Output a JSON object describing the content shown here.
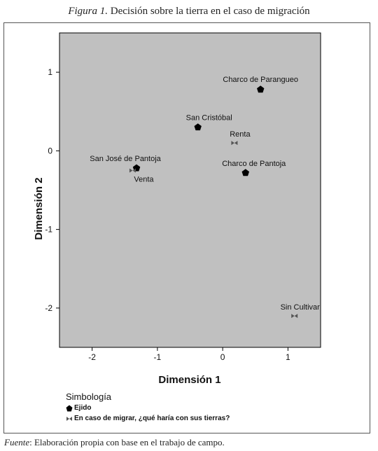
{
  "caption": {
    "figure_label": "Figura 1.",
    "title": "Decisión sobre la tierra en el caso de migración"
  },
  "source": {
    "label": "Fuente",
    "text": ": Elaboración propia con base en el trabajo de campo."
  },
  "legend": {
    "title": "Simbología",
    "items": [
      {
        "label": "Ejido",
        "icon": "pentagon-marker-icon"
      },
      {
        "label": "En caso de migrar, ¿qué haría con sus tierras?",
        "icon": "bowtie-marker-icon"
      }
    ]
  },
  "chart_data": {
    "type": "scatter",
    "title": "",
    "xlabel": "Dimensión 1",
    "ylabel": "Dimensión 2",
    "xlim": [
      -2.5,
      1.5
    ],
    "ylim": [
      -2.5,
      1.5
    ],
    "xticks": [
      "-2",
      "-1",
      "0",
      "1"
    ],
    "yticks": [
      "-2",
      "-1",
      "0",
      "1"
    ],
    "grid": false,
    "background_color": "#c0c0c0",
    "series": [
      {
        "name": "Ejido",
        "marker": "pentagon",
        "color": "#000000",
        "points": [
          {
            "label": "Charco de Parangueo",
            "x": 0.58,
            "y": 0.78
          },
          {
            "label": "San Cristóbal",
            "x": -0.38,
            "y": 0.3
          },
          {
            "label": "San José de Pantoja",
            "x": -1.32,
            "y": -0.22
          },
          {
            "label": "Charco de Pantoja",
            "x": 0.35,
            "y": -0.28
          }
        ]
      },
      {
        "name": "En caso de migrar, ¿qué haría con sus tierras?",
        "marker": "bowtie",
        "color": "#555555",
        "points": [
          {
            "label": "Renta",
            "x": 0.18,
            "y": 0.1
          },
          {
            "label": "Venta",
            "x": -1.38,
            "y": -0.25
          },
          {
            "label": "Sin Cultivar",
            "x": 1.1,
            "y": -2.1
          }
        ]
      }
    ]
  }
}
